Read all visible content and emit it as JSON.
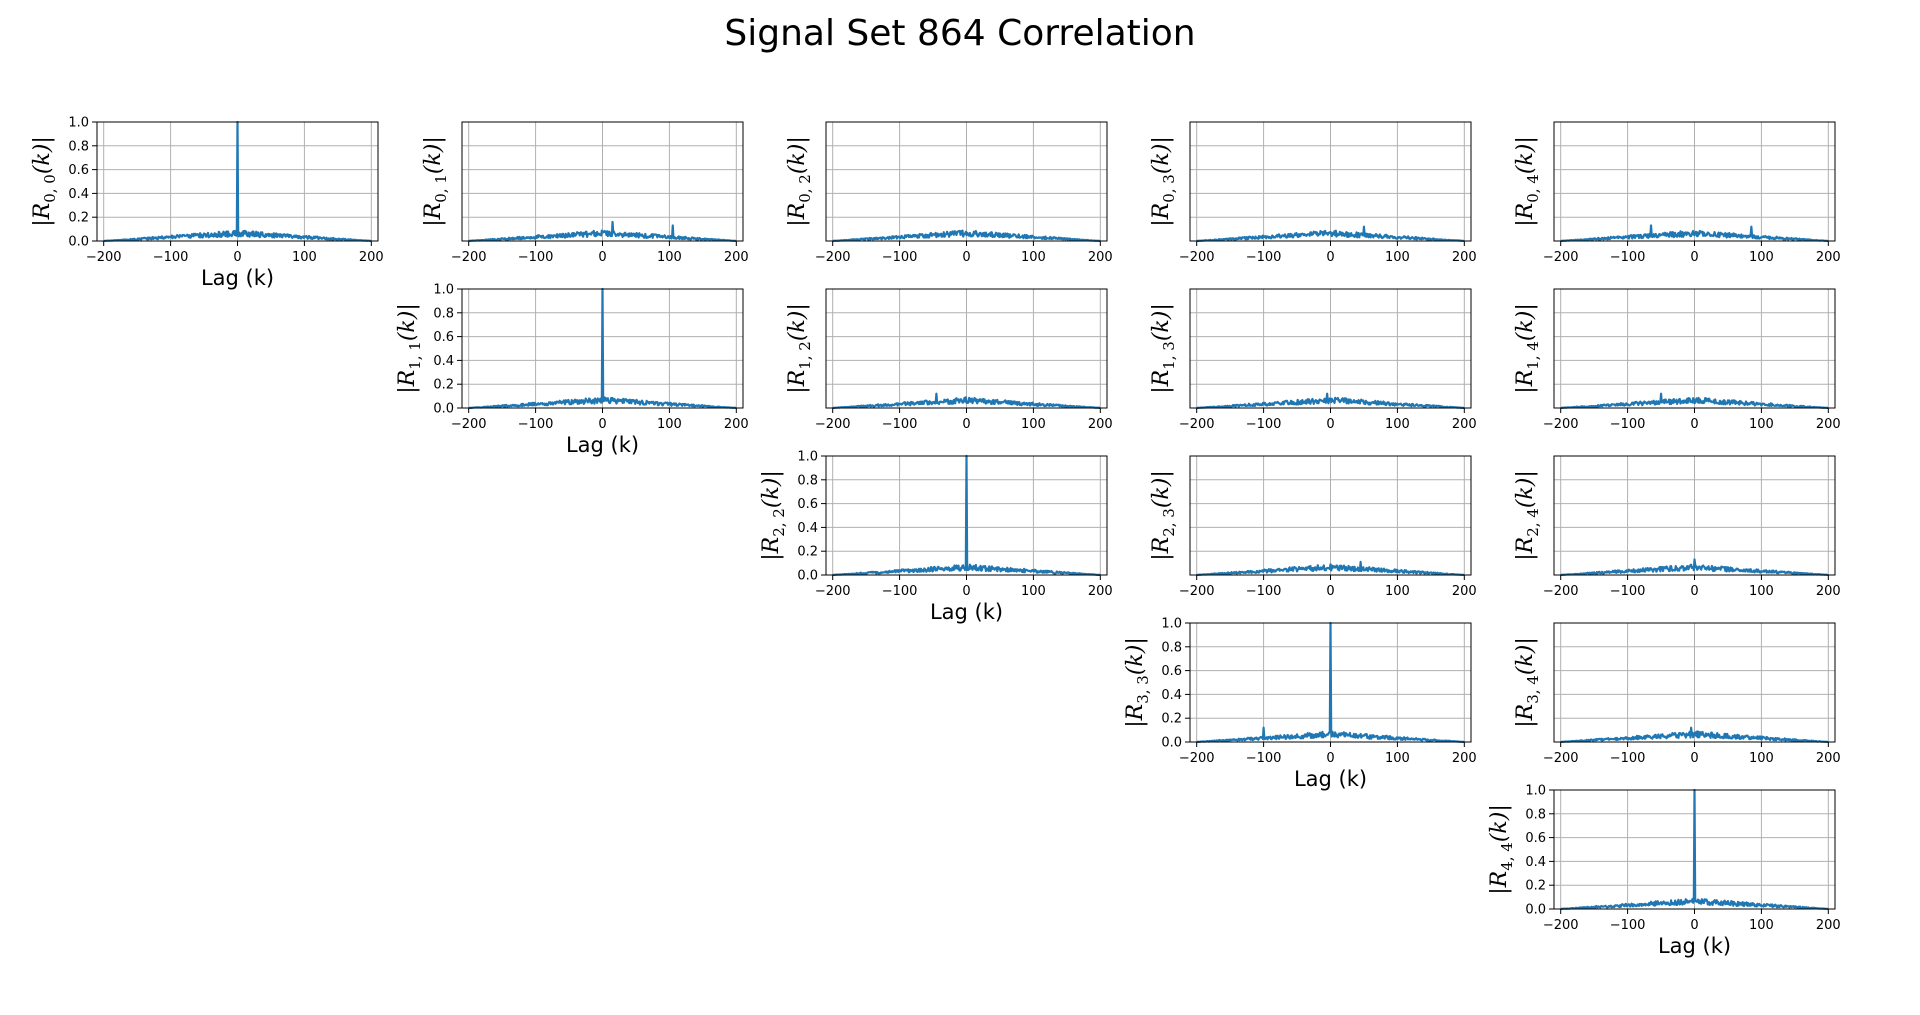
{
  "figure": {
    "title": "Signal Set 864 Correlation"
  },
  "chart_data": {
    "type": "line",
    "title": "Signal Set 864 Correlation",
    "series_color": "#1f77b4",
    "grid": true,
    "xlabel": "Lag (k)",
    "xlim": [
      -210,
      210
    ],
    "ylim": [
      0,
      1.0
    ],
    "xticks": [
      -200,
      -100,
      0,
      100,
      200
    ],
    "xtick_labels": [
      "−200",
      "−100",
      "0",
      "100",
      "200"
    ],
    "yticks": [
      0,
      0.2,
      0.4,
      0.6,
      0.8,
      1.0
    ],
    "ytick_labels": [
      "0.0",
      "0.2",
      "0.4",
      "0.6",
      "0.8",
      "1.0"
    ],
    "lag_range": [
      -200,
      200
    ],
    "panels": [
      {
        "i": 0,
        "j": 0,
        "ylabel": "|R",
        "sub": "0, 0",
        "ylabel_tail": "(k)|",
        "show_yticks": true,
        "show_xlabel": true,
        "peak_at_zero": 1.0,
        "peak_others": [],
        "level": 0.07
      },
      {
        "i": 0,
        "j": 1,
        "ylabel": "|R",
        "sub": "0, 1",
        "ylabel_tail": "(k)|",
        "show_yticks": false,
        "show_xlabel": false,
        "peak_at_zero": null,
        "peak_others": [
          [
            15,
            0.16
          ],
          [
            105,
            0.13
          ]
        ],
        "level": 0.07
      },
      {
        "i": 0,
        "j": 2,
        "ylabel": "|R",
        "sub": "0, 2",
        "ylabel_tail": "(k)|",
        "show_yticks": false,
        "show_xlabel": false,
        "peak_at_zero": null,
        "peak_others": [],
        "level": 0.07
      },
      {
        "i": 0,
        "j": 3,
        "ylabel": "|R",
        "sub": "0, 3",
        "ylabel_tail": "(k)|",
        "show_yticks": false,
        "show_xlabel": false,
        "peak_at_zero": null,
        "peak_others": [
          [
            50,
            0.12
          ]
        ],
        "level": 0.07
      },
      {
        "i": 0,
        "j": 4,
        "ylabel": "|R",
        "sub": "0, 4",
        "ylabel_tail": "(k)|",
        "show_yticks": false,
        "show_xlabel": false,
        "peak_at_zero": null,
        "peak_others": [
          [
            -65,
            0.13
          ],
          [
            85,
            0.12
          ]
        ],
        "level": 0.07
      },
      {
        "i": 1,
        "j": 1,
        "ylabel": "|R",
        "sub": "1, 1",
        "ylabel_tail": "(k)|",
        "show_yticks": true,
        "show_xlabel": true,
        "peak_at_zero": 1.0,
        "peak_others": [],
        "level": 0.07
      },
      {
        "i": 1,
        "j": 2,
        "ylabel": "|R",
        "sub": "1, 2",
        "ylabel_tail": "(k)|",
        "show_yticks": false,
        "show_xlabel": false,
        "peak_at_zero": null,
        "peak_others": [
          [
            -45,
            0.12
          ]
        ],
        "level": 0.07
      },
      {
        "i": 1,
        "j": 3,
        "ylabel": "|R",
        "sub": "1, 3",
        "ylabel_tail": "(k)|",
        "show_yticks": false,
        "show_xlabel": false,
        "peak_at_zero": null,
        "peak_others": [
          [
            -5,
            0.12
          ]
        ],
        "level": 0.07
      },
      {
        "i": 1,
        "j": 4,
        "ylabel": "|R",
        "sub": "1, 4",
        "ylabel_tail": "(k)|",
        "show_yticks": false,
        "show_xlabel": false,
        "peak_at_zero": null,
        "peak_others": [
          [
            -50,
            0.12
          ]
        ],
        "level": 0.07
      },
      {
        "i": 2,
        "j": 2,
        "ylabel": "|R",
        "sub": "2, 2",
        "ylabel_tail": "(k)|",
        "show_yticks": true,
        "show_xlabel": true,
        "peak_at_zero": 1.0,
        "peak_others": [],
        "level": 0.07
      },
      {
        "i": 2,
        "j": 3,
        "ylabel": "|R",
        "sub": "2, 3",
        "ylabel_tail": "(k)|",
        "show_yticks": false,
        "show_xlabel": false,
        "peak_at_zero": null,
        "peak_others": [
          [
            45,
            0.11
          ]
        ],
        "level": 0.07
      },
      {
        "i": 2,
        "j": 4,
        "ylabel": "|R",
        "sub": "2, 4",
        "ylabel_tail": "(k)|",
        "show_yticks": false,
        "show_xlabel": false,
        "peak_at_zero": null,
        "peak_others": [
          [
            0,
            0.13
          ]
        ],
        "level": 0.07
      },
      {
        "i": 3,
        "j": 3,
        "ylabel": "|R",
        "sub": "3, 3",
        "ylabel_tail": "(k)|",
        "show_yticks": true,
        "show_xlabel": true,
        "peak_at_zero": 1.0,
        "peak_others": [
          [
            -100,
            0.12
          ]
        ],
        "level": 0.07
      },
      {
        "i": 3,
        "j": 4,
        "ylabel": "|R",
        "sub": "3, 4",
        "ylabel_tail": "(k)|",
        "show_yticks": false,
        "show_xlabel": false,
        "peak_at_zero": null,
        "peak_others": [
          [
            -5,
            0.12
          ]
        ],
        "level": 0.07
      },
      {
        "i": 4,
        "j": 4,
        "ylabel": "|R",
        "sub": "4, 4",
        "ylabel_tail": "(k)|",
        "show_yticks": true,
        "show_xlabel": true,
        "peak_at_zero": 1.0,
        "peak_others": [],
        "level": 0.07
      }
    ]
  }
}
